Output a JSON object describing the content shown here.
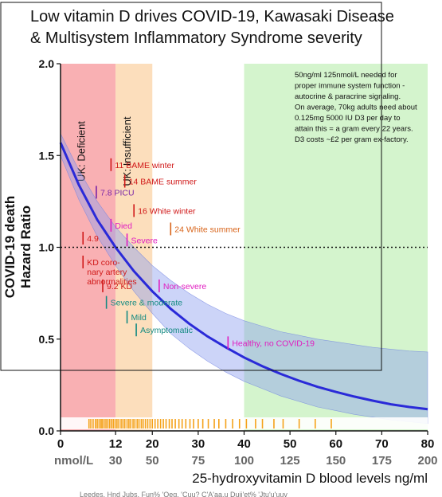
{
  "chart_data": {
    "type": "line",
    "title_line1": "Low vitamin D drives COVID-19, Kawasaki Disease",
    "title_line2": "& Multisystem Inflammatory Syndrome severity",
    "ylabel_line1": "COVID-19 death",
    "ylabel_line2": "Hazard Ratio",
    "xlabel": "25-hydroxyvitamin D blood levels ng/ml",
    "nmol_prefix": "nmol/L",
    "xlim": [
      0,
      80
    ],
    "ylim": [
      0,
      2.0
    ],
    "x_ticks": [
      {
        "x": 0,
        "label": "0",
        "nmol": ""
      },
      {
        "x": 12,
        "label": "12",
        "nmol": "30"
      },
      {
        "x": 20,
        "label": "20",
        "nmol": "50"
      },
      {
        "x": 30,
        "label": "30",
        "nmol": "75"
      },
      {
        "x": 40,
        "label": "40",
        "nmol": "100"
      },
      {
        "x": 50,
        "label": "50",
        "nmol": "125"
      },
      {
        "x": 60,
        "label": "60",
        "nmol": "150"
      },
      {
        "x": 70,
        "label": "70",
        "nmol": "175"
      },
      {
        "x": 80,
        "label": "80",
        "nmol": "200"
      }
    ],
    "y_ticks": [
      {
        "y": 0.0,
        "label": "0.0"
      },
      {
        "y": 0.5,
        "label": "0.5"
      },
      {
        "y": 1.0,
        "label": "1.0"
      },
      {
        "y": 1.5,
        "label": "1.5"
      },
      {
        "y": 2.0,
        "label": "2.0"
      }
    ],
    "reference_line": 1.0,
    "regions": [
      {
        "from": 0,
        "to": 12,
        "label": "UK: Deficient",
        "color": "#f8a2a6"
      },
      {
        "from": 12,
        "to": 20,
        "label": "UK: Insufficient",
        "color": "#fbd8b0"
      },
      {
        "from": 40,
        "to": 80,
        "label": "",
        "color": "#cdf2c4"
      }
    ],
    "fit_curve": {
      "x": [
        0,
        4,
        8,
        12,
        16,
        20,
        24,
        28,
        32,
        36,
        40,
        44,
        48,
        52,
        56,
        60,
        64,
        68,
        72,
        76,
        80
      ],
      "y": [
        1.57,
        1.34,
        1.15,
        1.0,
        0.87,
        0.76,
        0.665,
        0.585,
        0.515,
        0.455,
        0.4,
        0.352,
        0.31,
        0.273,
        0.24,
        0.212,
        0.187,
        0.165,
        0.145,
        0.13,
        0.118
      ],
      "color": "#2a2ad8"
    },
    "confidence_band": {
      "x": [
        0,
        4,
        8,
        12,
        16,
        20,
        24,
        28,
        32,
        36,
        40,
        44,
        48,
        52,
        56,
        60,
        64,
        68,
        72,
        76,
        80
      ],
      "lower": [
        1.5,
        1.26,
        1.06,
        0.9,
        0.76,
        0.64,
        0.53,
        0.45,
        0.38,
        0.32,
        0.27,
        0.23,
        0.19,
        0.16,
        0.13,
        0.11,
        0.09,
        0.075,
        0.06,
        0.05,
        0.04
      ],
      "upper": [
        1.62,
        1.42,
        1.25,
        1.11,
        1.0,
        0.9,
        0.82,
        0.75,
        0.69,
        0.64,
        0.6,
        0.57,
        0.54,
        0.52,
        0.5,
        0.485,
        0.47,
        0.455,
        0.445,
        0.435,
        0.43
      ],
      "color": "#8e9ff0"
    },
    "rug_x": [
      6.2,
      6.6,
      7.1,
      7.6,
      8.0,
      8.4,
      8.8,
      9.1,
      9.5,
      9.9,
      10.3,
      10.7,
      11.1,
      11.5,
      11.9,
      12.3,
      12.7,
      13.2,
      13.6,
      14.0,
      14.5,
      14.9,
      15.3,
      15.8,
      16.2,
      16.7,
      17.1,
      17.6,
      18.0,
      18.5,
      19.0,
      19.5,
      20.0,
      20.6,
      21.2,
      21.8,
      22.4,
      23.0,
      23.7,
      24.3,
      25.0,
      25.8,
      26.5,
      27.3,
      28.2,
      29.0,
      30.0,
      31.0,
      32.2,
      33.5,
      34.5,
      36.0,
      37.5,
      39.0,
      40.5,
      42.5,
      44.0,
      46.5,
      48.5,
      52.0,
      55.5,
      59.0
    ],
    "rug_color": "#f5a21a",
    "annotations": [
      {
        "text": "11 BAME winter",
        "x": 11,
        "y": 1.45,
        "color": "#d01818"
      },
      {
        "text": "14 BAME summer",
        "x": 14,
        "y": 1.36,
        "color": "#d01818"
      },
      {
        "text": "7.8 PICU",
        "x": 7.8,
        "y": 1.3,
        "color": "#7a24a6"
      },
      {
        "text": "16 White winter",
        "x": 16,
        "y": 1.2,
        "color": "#d01818"
      },
      {
        "text": "Died",
        "x": 11,
        "y": 1.12,
        "color": "#e01dc0"
      },
      {
        "text": "24 White summer",
        "x": 24,
        "y": 1.1,
        "color": "#d8641a"
      },
      {
        "text": "4.9",
        "x": 4.9,
        "y": 1.05,
        "color": "#d01818"
      },
      {
        "text": "Severe",
        "x": 14.5,
        "y": 1.04,
        "color": "#e01dc0"
      },
      {
        "text": "KD coronary artery abnormalities",
        "x": 4.9,
        "y": 0.92,
        "color": "#d01818"
      },
      {
        "text": "9.2 KD",
        "x": 9.2,
        "y": 0.79,
        "color": "#d01818"
      },
      {
        "text": "Non-severe",
        "x": 21.5,
        "y": 0.79,
        "color": "#e01dc0"
      },
      {
        "text": "Severe & moderate",
        "x": 10,
        "y": 0.7,
        "color": "#148a82"
      },
      {
        "text": "Mild",
        "x": 14.5,
        "y": 0.62,
        "color": "#148a82"
      },
      {
        "text": "Asymptomatic",
        "x": 16.5,
        "y": 0.55,
        "color": "#148a82"
      },
      {
        "text": "Healthy, no COVID-19",
        "x": 36.5,
        "y": 0.48,
        "color": "#e01dc0"
      }
    ],
    "info_lines": [
      "50ng/ml 125nmol/L needed for",
      "proper immune system function -",
      "autocrine & paracrine signaling.",
      "On average, 70kg adults need about",
      "0.125mg 5000 IU D3 per day to",
      "attain this = a gram every 22 years.",
      "D3 costs ~£2 per gram ex-factory."
    ],
    "footer_text": "Leedes, Hnd Jubs, Fun% 'Qeq, 'Cuu? C'A'aa.u Duii'et% 'Jtu'u'uuv"
  }
}
